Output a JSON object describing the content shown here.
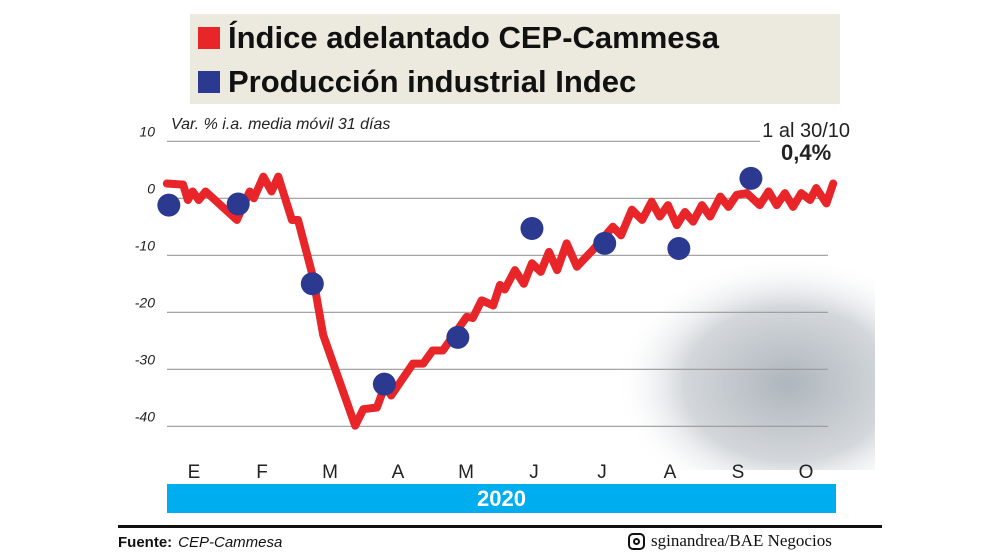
{
  "legend": [
    {
      "label": "Índice adelantado CEP-Cammesa",
      "color": "#e8262a"
    },
    {
      "label": "Producción industrial Indec",
      "color": "#2b3990"
    }
  ],
  "footer": {
    "source_label": "Fuente:",
    "source": "CEP-Cammesa",
    "credit": "sginandrea/BAE Negocios",
    "credit_icon": "instagram-icon"
  },
  "chart_data": {
    "type": "line",
    "ylabel": "Var. % i.a. media móvil 31 días",
    "ylim": [
      -40,
      10
    ],
    "yticks": [
      10,
      0,
      -10,
      -20,
      -30,
      -40
    ],
    "grid": true,
    "x_unit": "month index (0 = start of January 2020)",
    "categories": [
      "E",
      "F",
      "M",
      "A",
      "M",
      "J",
      "J",
      "A",
      "S",
      "O"
    ],
    "year_label": "2020",
    "annotation": {
      "line1": "1 al 30/10",
      "line2": "0,4%"
    },
    "series": [
      {
        "name": "Índice adelantado CEP-Cammesa",
        "color": "#e8262a",
        "points": [
          [
            0.1,
            2.6
          ],
          [
            0.34,
            2.4
          ],
          [
            0.41,
            -0.3
          ],
          [
            0.48,
            1.2
          ],
          [
            0.57,
            -0.3
          ],
          [
            0.67,
            1.2
          ],
          [
            1.13,
            -3.8
          ],
          [
            1.32,
            1.2
          ],
          [
            1.38,
            0
          ],
          [
            1.52,
            3.8
          ],
          [
            1.64,
            1.2
          ],
          [
            1.74,
            3.8
          ],
          [
            1.94,
            -3.8
          ],
          [
            2.03,
            -3.8
          ],
          [
            2.25,
            -13.8
          ],
          [
            2.4,
            -24
          ],
          [
            2.87,
            -39.9
          ],
          [
            2.99,
            -37
          ],
          [
            3.19,
            -36.7
          ],
          [
            3.31,
            -32.8
          ],
          [
            3.4,
            -34.6
          ],
          [
            3.72,
            -29
          ],
          [
            3.87,
            -29
          ],
          [
            4.01,
            -26.7
          ],
          [
            4.16,
            -26.7
          ],
          [
            4.51,
            -20.8
          ],
          [
            4.6,
            -21
          ],
          [
            4.73,
            -17.9
          ],
          [
            4.9,
            -18.8
          ],
          [
            5.0,
            -15.2
          ],
          [
            5.07,
            -16
          ],
          [
            5.22,
            -12.6
          ],
          [
            5.35,
            -15
          ],
          [
            5.47,
            -11.4
          ],
          [
            5.6,
            -12.9
          ],
          [
            5.72,
            -9.4
          ],
          [
            5.84,
            -12.6
          ],
          [
            5.98,
            -7.9
          ],
          [
            6.13,
            -12
          ],
          [
            6.37,
            -9
          ],
          [
            6.66,
            -5
          ],
          [
            6.78,
            -6.5
          ],
          [
            6.94,
            -2
          ],
          [
            7.09,
            -3.8
          ],
          [
            7.23,
            -0.6
          ],
          [
            7.35,
            -3.2
          ],
          [
            7.47,
            -1.2
          ],
          [
            7.6,
            -4.7
          ],
          [
            7.72,
            -2.4
          ],
          [
            7.84,
            -4.1
          ],
          [
            7.97,
            -1.2
          ],
          [
            8.09,
            -3.2
          ],
          [
            8.24,
            0.3
          ],
          [
            8.36,
            -1.5
          ],
          [
            8.48,
            0.6
          ],
          [
            8.63,
            0.9
          ],
          [
            8.82,
            -1.2
          ],
          [
            8.95,
            1.2
          ],
          [
            9.07,
            -1.2
          ],
          [
            9.19,
            0.9
          ],
          [
            9.31,
            -1.5
          ],
          [
            9.43,
            0.9
          ],
          [
            9.56,
            -0.3
          ],
          [
            9.65,
            1.8
          ],
          [
            9.8,
            -0.9
          ],
          [
            9.9,
            2.6
          ]
        ]
      },
      {
        "name": "Producción industrial Indec",
        "color": "#2b3990",
        "points": [
          [
            0.13,
            -1.2
          ],
          [
            1.15,
            -1.0
          ],
          [
            2.24,
            -15
          ],
          [
            3.3,
            -32.6
          ],
          [
            4.38,
            -24.4
          ],
          [
            5.47,
            -5.3
          ],
          [
            6.54,
            -7.9
          ],
          [
            7.63,
            -8.8
          ],
          [
            8.69,
            3.5
          ]
        ]
      }
    ]
  }
}
